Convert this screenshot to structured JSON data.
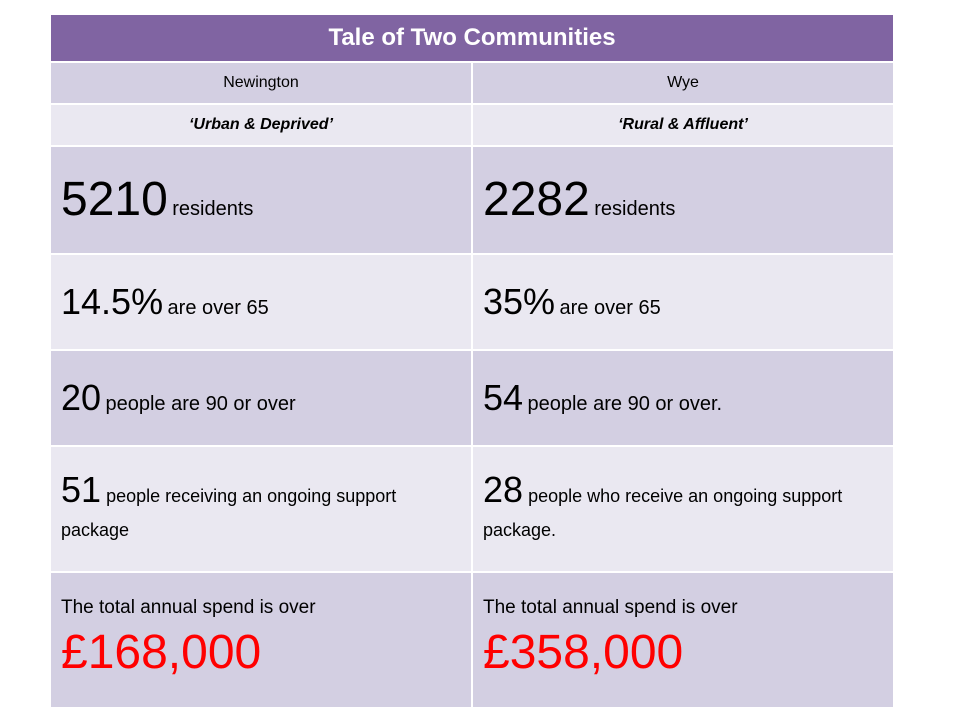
{
  "title": "Tale of Two Communities",
  "columns": [
    {
      "name": "Newington",
      "tagline": "‘Urban & Deprived’",
      "residents_value": "5210",
      "residents_label": "residents",
      "over65_value": "14.5%",
      "over65_label": "are over 65",
      "ninety_value": "20",
      "ninety_label": "people are 90 or over",
      "support_value": "51",
      "support_label": "people receiving an ongoing support package",
      "spend_label": "The total annual spend is over",
      "spend_value": "£168,000"
    },
    {
      "name": "Wye",
      "tagline": "‘Rural & Affluent’",
      "residents_value": "2282",
      "residents_label": "residents",
      "over65_value": "35%",
      "over65_label": "are over 65",
      "ninety_value": "54",
      "ninety_label": "people are 90 or over.",
      "support_value": "28",
      "support_label": "people who receive an ongoing support package.",
      "spend_label": "The total annual spend is over",
      "spend_value": "£358,000"
    }
  ],
  "colors": {
    "header": "#8064a2",
    "row_dark": "#d3cfe2",
    "row_light": "#eae8f1",
    "spend_highlight": "#ff0000"
  }
}
